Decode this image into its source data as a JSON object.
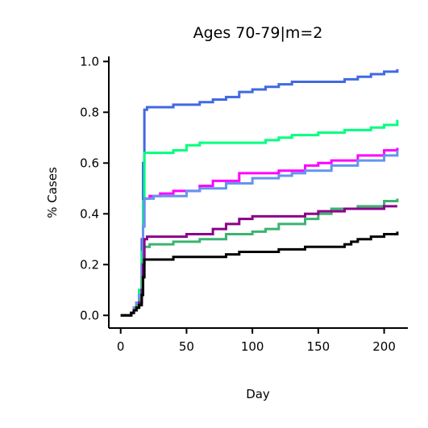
{
  "chart_data": {
    "type": "line",
    "title": "Ages 70-79|m=2",
    "xlabel": "Day",
    "ylabel": "% Cases",
    "xlim": [
      -9,
      218
    ],
    "ylim": [
      -0.05,
      1.02
    ],
    "xticks": [
      0,
      50,
      100,
      150,
      200
    ],
    "yticks": [
      0.0,
      0.2,
      0.4,
      0.6,
      0.8,
      1.0
    ],
    "xtick_labels": [
      "0",
      "50",
      "100",
      "150",
      "200"
    ],
    "ytick_labels": [
      "0.0",
      "0.2",
      "0.4",
      "0.6",
      "0.8",
      "1.0"
    ],
    "grid": false,
    "series": [
      {
        "color": "#4169e1",
        "x": [
          0,
          5,
          8,
          10,
          12,
          14,
          16,
          17,
          18,
          20,
          30,
          40,
          60,
          70,
          80,
          90,
          100,
          110,
          120,
          130,
          140,
          150,
          160,
          170,
          180,
          190,
          200,
          205,
          210
        ],
        "y": [
          0,
          0,
          0.01,
          0.03,
          0.05,
          0.1,
          0.3,
          0.6,
          0.81,
          0.82,
          0.82,
          0.83,
          0.84,
          0.85,
          0.86,
          0.88,
          0.89,
          0.9,
          0.91,
          0.92,
          0.92,
          0.92,
          0.92,
          0.93,
          0.94,
          0.95,
          0.96,
          0.96,
          0.97
        ]
      },
      {
        "color": "#00ff7f",
        "x": [
          0,
          5,
          8,
          10,
          12,
          14,
          16,
          17,
          18,
          20,
          40,
          50,
          60,
          80,
          100,
          110,
          120,
          130,
          150,
          170,
          190,
          200,
          205,
          210
        ],
        "y": [
          0,
          0,
          0.01,
          0.03,
          0.05,
          0.1,
          0.25,
          0.45,
          0.64,
          0.64,
          0.65,
          0.67,
          0.68,
          0.68,
          0.68,
          0.69,
          0.7,
          0.71,
          0.72,
          0.73,
          0.74,
          0.75,
          0.75,
          0.77
        ]
      },
      {
        "color": "#ff00ff",
        "x": [
          0,
          5,
          8,
          10,
          12,
          14,
          16,
          17,
          18,
          22,
          30,
          40,
          60,
          70,
          90,
          100,
          120,
          140,
          150,
          160,
          180,
          200,
          210
        ],
        "y": [
          0,
          0,
          0.01,
          0.03,
          0.05,
          0.08,
          0.2,
          0.35,
          0.46,
          0.47,
          0.48,
          0.49,
          0.51,
          0.53,
          0.56,
          0.56,
          0.57,
          0.59,
          0.6,
          0.61,
          0.63,
          0.65,
          0.66
        ]
      },
      {
        "color": "#6495ed",
        "x": [
          0,
          5,
          8,
          10,
          12,
          14,
          16,
          17,
          18,
          25,
          40,
          50,
          60,
          80,
          100,
          120,
          130,
          140,
          160,
          180,
          200,
          210
        ],
        "y": [
          0,
          0,
          0.01,
          0.03,
          0.05,
          0.08,
          0.2,
          0.35,
          0.46,
          0.47,
          0.47,
          0.49,
          0.5,
          0.52,
          0.54,
          0.55,
          0.56,
          0.57,
          0.59,
          0.61,
          0.63,
          0.65
        ]
      },
      {
        "color": "#3cb371",
        "x": [
          0,
          5,
          8,
          10,
          12,
          14,
          16,
          17,
          18,
          22,
          30,
          40,
          60,
          80,
          100,
          110,
          120,
          140,
          150,
          160,
          180,
          200,
          210
        ],
        "y": [
          0,
          0,
          0.01,
          0.02,
          0.04,
          0.06,
          0.15,
          0.22,
          0.27,
          0.28,
          0.28,
          0.29,
          0.3,
          0.32,
          0.33,
          0.34,
          0.36,
          0.38,
          0.4,
          0.42,
          0.43,
          0.45,
          0.46
        ]
      },
      {
        "color": "#8b008b",
        "x": [
          0,
          5,
          8,
          10,
          12,
          14,
          16,
          17,
          18,
          20,
          50,
          70,
          80,
          90,
          100,
          120,
          140,
          150,
          160,
          170,
          180,
          200,
          210
        ],
        "y": [
          0,
          0,
          0.01,
          0.02,
          0.03,
          0.05,
          0.1,
          0.2,
          0.3,
          0.31,
          0.32,
          0.34,
          0.36,
          0.38,
          0.39,
          0.39,
          0.4,
          0.41,
          0.41,
          0.42,
          0.42,
          0.43,
          0.43
        ]
      },
      {
        "color": "#000000",
        "x": [
          0,
          5,
          8,
          10,
          12,
          14,
          16,
          17,
          18,
          20,
          40,
          80,
          90,
          110,
          120,
          130,
          140,
          150,
          170,
          175,
          180,
          190,
          200,
          210
        ],
        "y": [
          0,
          0,
          0.01,
          0.02,
          0.03,
          0.04,
          0.08,
          0.15,
          0.22,
          0.22,
          0.23,
          0.24,
          0.25,
          0.25,
          0.26,
          0.26,
          0.27,
          0.27,
          0.28,
          0.29,
          0.3,
          0.31,
          0.32,
          0.33
        ]
      }
    ]
  }
}
